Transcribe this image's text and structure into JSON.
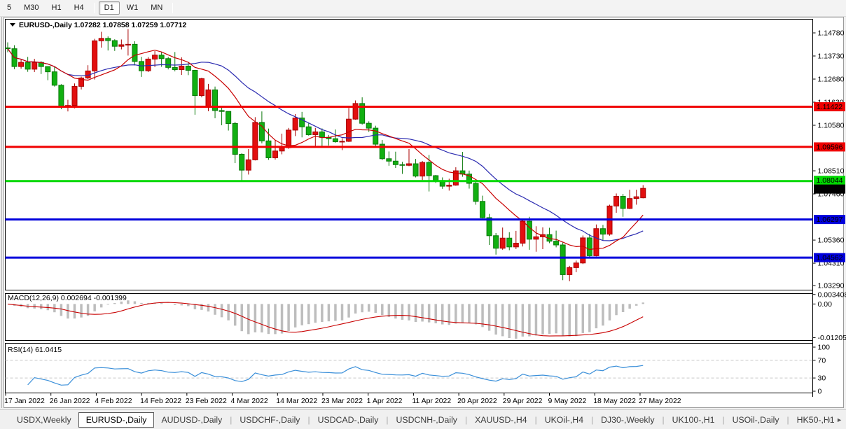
{
  "toolbar": {
    "active": "D1",
    "timeframes": [
      {
        "label": "5",
        "sep_after": false
      },
      {
        "label": "M30",
        "sep_after": false
      },
      {
        "label": "H1",
        "sep_after": false
      },
      {
        "label": "H4",
        "sep_after": true
      },
      {
        "label": "D1",
        "sep_after": false
      },
      {
        "label": "W1",
        "sep_after": false
      },
      {
        "label": "MN",
        "sep_after": true
      }
    ]
  },
  "chart": {
    "symbol_title": "EURUSD-,Daily",
    "ohlc_text": "1.07282 1.07858 1.07259 1.07712"
  },
  "chart_data": {
    "type": "candlestick",
    "title": "EURUSD-,Daily",
    "ohlc_current": {
      "open": 1.07282,
      "high": 1.07858,
      "low": 1.07259,
      "close": 1.07712
    },
    "ylim": [
      1.0307,
      1.1532
    ],
    "y_ticks": [
      {
        "value": 1.1478,
        "label": "1.14780"
      },
      {
        "value": 1.1373,
        "label": "1.13730"
      },
      {
        "value": 1.1268,
        "label": "1.12680"
      },
      {
        "value": 1.1163,
        "label": "1.11630"
      },
      {
        "value": 1.1058,
        "label": "1.10580"
      },
      {
        "value": 1.0851,
        "label": "1.08510"
      },
      {
        "value": 1.0746,
        "label": "1.07460"
      },
      {
        "value": 1.0536,
        "label": "1.05360"
      },
      {
        "value": 1.0431,
        "label": "1.04310"
      },
      {
        "value": 1.0329,
        "label": "1.03290"
      }
    ],
    "x_labels": [
      "17 Jan 2022",
      "26 Jan 2022",
      "4 Feb 2022",
      "14 Feb 2022",
      "23 Feb 2022",
      "4 Mar 2022",
      "14 Mar 2022",
      "23 Mar 2022",
      "1 Apr 2022",
      "11 Apr 2022",
      "20 Apr 2022",
      "29 Apr 2022",
      "9 May 2022",
      "18 May 2022",
      "27 May 2022"
    ],
    "levels": [
      {
        "value": 1.11422,
        "label": "1.11422",
        "color": "#f00000",
        "text_color": "#ffffff"
      },
      {
        "value": 1.09596,
        "label": "1.09596",
        "color": "#f00000",
        "text_color": "#ffffff"
      },
      {
        "value": 1.08044,
        "label": "1.08044",
        "color": "#00d800",
        "text_color": "#000000"
      },
      {
        "value": 1.06297,
        "label": "1.06297",
        "color": "#0000dc",
        "text_color": "#ffffff"
      },
      {
        "value": 1.04562,
        "label": "1.04562",
        "color": "#0000dc",
        "text_color": "#ffffff"
      }
    ],
    "current_price": {
      "value": 1.07712,
      "label": "1.07712",
      "bg": "#000000",
      "text_color": "#ffffff"
    },
    "colors": {
      "up": "#e20f0f",
      "up_border": "#a80000",
      "down": "#11b011",
      "down_border": "#0a780a",
      "ma_fast": "#c80000",
      "ma_slow": "#2a2ab0",
      "macd_hist": "#bdbdbd",
      "macd_signal": "#c80000",
      "rsi": "#3a8fd9",
      "guide": "#c8c8c8"
    },
    "ma_periods": {
      "fast": 10,
      "slow": 20
    },
    "candles": [
      [
        1.141,
        1.1435,
        1.139,
        1.1406
      ],
      [
        1.1406,
        1.1422,
        1.1313,
        1.1325
      ],
      [
        1.1325,
        1.1357,
        1.1315,
        1.1344
      ],
      [
        1.1344,
        1.1369,
        1.1301,
        1.1313
      ],
      [
        1.1313,
        1.136,
        1.13,
        1.1344
      ],
      [
        1.1344,
        1.1349,
        1.1291,
        1.1325
      ],
      [
        1.1325,
        1.1325,
        1.1263,
        1.1301
      ],
      [
        1.1301,
        1.1324,
        1.1234,
        1.124
      ],
      [
        1.124,
        1.1245,
        1.1131,
        1.1145
      ],
      [
        1.1145,
        1.1174,
        1.1121,
        1.1148
      ],
      [
        1.1148,
        1.1248,
        1.1135,
        1.1235
      ],
      [
        1.1235,
        1.1279,
        1.1221,
        1.1273
      ],
      [
        1.1273,
        1.1331,
        1.1267,
        1.1305
      ],
      [
        1.1305,
        1.1451,
        1.1266,
        1.1442
      ],
      [
        1.1442,
        1.1483,
        1.1411,
        1.1453
      ],
      [
        1.1453,
        1.1462,
        1.1398,
        1.1443
      ],
      [
        1.1443,
        1.1449,
        1.1396,
        1.1417
      ],
      [
        1.1417,
        1.1448,
        1.1403,
        1.1424
      ],
      [
        1.1424,
        1.1495,
        1.1375,
        1.1426
      ],
      [
        1.1426,
        1.144,
        1.133,
        1.1348
      ],
      [
        1.1348,
        1.1369,
        1.1278,
        1.1306
      ],
      [
        1.1306,
        1.1368,
        1.13,
        1.1359
      ],
      [
        1.1359,
        1.1395,
        1.1323,
        1.1377
      ],
      [
        1.1377,
        1.1392,
        1.1324,
        1.1361
      ],
      [
        1.1361,
        1.1369,
        1.1312,
        1.1321
      ],
      [
        1.1321,
        1.1391,
        1.1303,
        1.1311
      ],
      [
        1.1311,
        1.1367,
        1.1287,
        1.1327
      ],
      [
        1.1327,
        1.1343,
        1.1286,
        1.1308
      ],
      [
        1.1308,
        1.131,
        1.1106,
        1.1193
      ],
      [
        1.1193,
        1.1274,
        1.1185,
        1.127
      ],
      [
        1.1145,
        1.1246,
        1.1122,
        1.1219
      ],
      [
        1.1219,
        1.1234,
        1.109,
        1.1125
      ],
      [
        1.1125,
        1.1144,
        1.1058,
        1.1121
      ],
      [
        1.1121,
        1.1121,
        1.1034,
        1.1066
      ],
      [
        1.1066,
        1.1074,
        1.0886,
        1.0926
      ],
      [
        1.0926,
        1.0931,
        1.0806,
        1.0854
      ],
      [
        1.0854,
        1.095,
        1.0834,
        1.0901
      ],
      [
        1.0901,
        1.1095,
        1.0898,
        1.1071
      ],
      [
        1.1071,
        1.1121,
        1.0976,
        1.0987
      ],
      [
        1.0987,
        1.1043,
        1.0901,
        1.091
      ],
      [
        1.091,
        1.0992,
        1.0902,
        1.0941
      ],
      [
        1.0941,
        1.102,
        1.0926,
        1.0956
      ],
      [
        1.0956,
        1.1046,
        1.0951,
        1.1036
      ],
      [
        1.1036,
        1.1109,
        1.1009,
        1.1091
      ],
      [
        1.1091,
        1.1119,
        1.1003,
        1.1051
      ],
      [
        1.1051,
        1.1069,
        1.1011,
        1.1015
      ],
      [
        1.1015,
        1.1046,
        1.0962,
        1.1028
      ],
      [
        1.1028,
        1.1044,
        1.0963,
        1.1003
      ],
      [
        1.1003,
        1.1014,
        1.0966,
        1.0997
      ],
      [
        1.0997,
        1.1039,
        1.0979,
        1.0983
      ],
      [
        1.0983,
        1.0999,
        1.0945,
        1.0985
      ],
      [
        1.0985,
        1.1137,
        1.0982,
        1.1086
      ],
      [
        1.1086,
        1.1171,
        1.1083,
        1.1157
      ],
      [
        1.1157,
        1.1185,
        1.1061,
        1.1067
      ],
      [
        1.1067,
        1.1076,
        1.1028,
        1.1045
      ],
      [
        1.1045,
        1.1056,
        1.096,
        1.0972
      ],
      [
        1.0972,
        1.0991,
        1.09,
        1.0906
      ],
      [
        1.0906,
        1.0939,
        1.0874,
        1.0895
      ],
      [
        1.0895,
        1.0938,
        1.0864,
        1.0879
      ],
      [
        1.0879,
        1.0892,
        1.0837,
        1.0876
      ],
      [
        1.0876,
        1.095,
        1.0872,
        1.0883
      ],
      [
        1.0883,
        1.0905,
        1.0821,
        1.0827
      ],
      [
        1.0827,
        1.0896,
        1.0809,
        1.0889
      ],
      [
        1.0889,
        1.0923,
        1.0757,
        1.0829
      ],
      [
        1.0829,
        1.0832,
        1.0796,
        1.0807
      ],
      [
        1.0807,
        1.0821,
        1.0769,
        1.0781
      ],
      [
        1.0781,
        1.0815,
        1.0761,
        1.0786
      ],
      [
        1.0786,
        1.0867,
        1.0783,
        1.0851
      ],
      [
        1.0851,
        1.0937,
        1.0824,
        1.0836
      ],
      [
        1.0836,
        1.0852,
        1.077,
        1.0794
      ],
      [
        1.0794,
        1.0804,
        1.0697,
        1.0712
      ],
      [
        1.0712,
        1.0738,
        1.0635,
        1.0638
      ],
      [
        1.0638,
        1.0655,
        1.0514,
        1.0556
      ],
      [
        1.0556,
        1.0568,
        1.047,
        1.0499
      ],
      [
        1.0499,
        1.0593,
        1.0492,
        1.0545
      ],
      [
        1.0545,
        1.0572,
        1.049,
        1.0505
      ],
      [
        1.0505,
        1.0578,
        1.0495,
        1.0522
      ],
      [
        1.0522,
        1.0632,
        1.0507,
        1.0622
      ],
      [
        1.0622,
        1.0642,
        1.0492,
        1.054
      ],
      [
        1.054,
        1.0599,
        1.0483,
        1.0551
      ],
      [
        1.0551,
        1.0594,
        1.0495,
        1.0561
      ],
      [
        1.0561,
        1.0592,
        1.0522,
        1.0531
      ],
      [
        1.0531,
        1.0579,
        1.0503,
        1.0514
      ],
      [
        1.0514,
        1.0525,
        1.0354,
        1.0379
      ],
      [
        1.0379,
        1.0419,
        1.0349,
        1.0411
      ],
      [
        1.0411,
        1.0443,
        1.039,
        1.0432
      ],
      [
        1.0432,
        1.0557,
        1.0427,
        1.0546
      ],
      [
        1.0546,
        1.0564,
        1.0459,
        1.0465
      ],
      [
        1.0465,
        1.0607,
        1.0462,
        1.0588
      ],
      [
        1.0588,
        1.0605,
        1.0533,
        1.0563
      ],
      [
        1.0563,
        1.0697,
        1.0556,
        1.0691
      ],
      [
        1.0691,
        1.0748,
        1.066,
        1.0735
      ],
      [
        1.0735,
        1.0746,
        1.0642,
        1.068
      ],
      [
        1.068,
        1.0765,
        1.0677,
        1.0725
      ],
      [
        1.0725,
        1.0765,
        1.0697,
        1.0733
      ],
      [
        1.07282,
        1.07858,
        1.07259,
        1.07712
      ]
    ],
    "macd": {
      "label": "MACD(12,26,9)",
      "main_value": "0.002694",
      "signal_value": "-0.001399",
      "fast": 12,
      "slow": 26,
      "signal": 9,
      "axis_labels": [
        {
          "value": 0.003408,
          "label": "0.003408"
        },
        {
          "value": 0.0,
          "label": "0.00"
        },
        {
          "value": -0.01205,
          "label": "-0.01205"
        }
      ],
      "range": [
        -0.0127,
        0.0036
      ]
    },
    "rsi": {
      "label": "RSI(14)",
      "value": "61.0415",
      "period": 14,
      "axis_labels": [
        {
          "value": 100,
          "label": "100"
        },
        {
          "value": 70,
          "label": "70"
        },
        {
          "value": 30,
          "label": "30"
        },
        {
          "value": 0,
          "label": "0"
        }
      ],
      "guides": [
        70,
        30
      ]
    }
  },
  "tabbar": {
    "tabs": [
      {
        "label": "USDX,Weekly",
        "active": false
      },
      {
        "label": "EURUSD-,Daily",
        "active": true
      },
      {
        "label": "AUDUSD-,Daily",
        "active": false
      },
      {
        "label": "USDCHF-,Daily",
        "active": false
      },
      {
        "label": "USDCAD-,Daily",
        "active": false
      },
      {
        "label": "USDCNH-,Daily",
        "active": false
      },
      {
        "label": "XAUUSD-,H4",
        "active": false
      },
      {
        "label": "UKOil-,H4",
        "active": false
      },
      {
        "label": "DJ30-,Weekly",
        "active": false
      },
      {
        "label": "UK100-,H1",
        "active": false
      },
      {
        "label": "USOil-,Daily",
        "active": false
      },
      {
        "label": "HK50-,H1",
        "active": false
      }
    ],
    "scroll_left_icon": "◄",
    "scroll_right_icon": "►"
  }
}
